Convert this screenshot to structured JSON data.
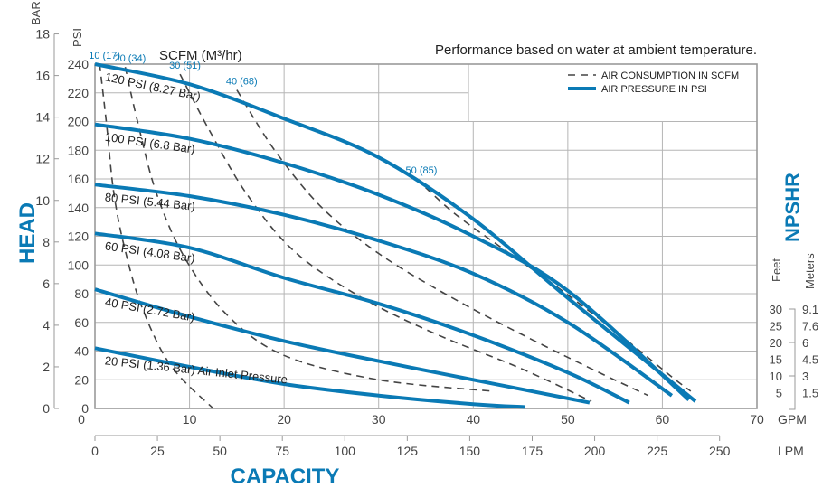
{
  "chart_data": {
    "type": "line",
    "note": "Performance based on water at ambient temperature.",
    "xlabel": "CAPACITY",
    "ylabel": "HEAD",
    "right_label": "NPSHR",
    "x_unit_primary": "GPM",
    "x_unit_secondary": "LPM",
    "y_unit_primary": "PSI",
    "y_unit_secondary": "BAR",
    "xlim": [
      0,
      70
    ],
    "ylim": [
      0,
      240
    ],
    "grid": true,
    "legend_position": "top-right",
    "legend": [
      {
        "label": "AIR CONSUMPTION IN SCFM",
        "style": "dashed",
        "color": "#444444"
      },
      {
        "label": "AIR PRESSURE IN PSI",
        "style": "solid",
        "color": "#0a7ab5"
      }
    ],
    "x_ticks_gpm": [
      "0",
      "10",
      "20",
      "30",
      "40",
      "50",
      "60",
      "70"
    ],
    "x_ticks_lpm": [
      "0",
      "25",
      "50",
      "75",
      "100",
      "125",
      "150",
      "175",
      "200",
      "225",
      "250"
    ],
    "y_ticks_psi": [
      "0",
      "20",
      "40",
      "60",
      "80",
      "100",
      "120",
      "140",
      "160",
      "180",
      "200",
      "220",
      "240"
    ],
    "y_ticks_bar": [
      "0",
      "2",
      "4",
      "6",
      "8",
      "10",
      "12",
      "14",
      "16",
      "18"
    ],
    "npshr_feet_label": "Feet",
    "npshr_meters_label": "Meters",
    "npshr_feet": [
      "30",
      "25",
      "20",
      "15",
      "10",
      "5"
    ],
    "npshr_meters": [
      "9.1",
      "7.6",
      "6",
      "4.5",
      "3",
      "1.5"
    ],
    "scfm_header": "SCFM (M³/hr)",
    "series": [
      {
        "name": "120 PSI (8.27 Bar)",
        "kind": "pressure",
        "x": [
          0,
          10,
          20,
          30,
          40,
          50,
          63.5
        ],
        "y": [
          240,
          226,
          202,
          175,
          132,
          77,
          5
        ]
      },
      {
        "name": "100 PSI (6.8 Bar)",
        "kind": "pressure",
        "x": [
          0,
          10,
          20,
          30,
          40,
          50,
          62.8
        ],
        "y": [
          198,
          188,
          171,
          149,
          120,
          82,
          6
        ]
      },
      {
        "name": "80 PSI (5.44 Bar)",
        "kind": "pressure",
        "x": [
          0,
          10,
          20,
          30,
          40,
          50,
          61
        ],
        "y": [
          156,
          148,
          135,
          117,
          94,
          60,
          9
        ]
      },
      {
        "name": "60 PSI (4.08 Bar)",
        "kind": "pressure",
        "x": [
          0,
          10,
          20,
          30,
          40,
          50,
          56.5
        ],
        "y": [
          122,
          112,
          91,
          73,
          51,
          25,
          4
        ]
      },
      {
        "name": "40 PSI (2.72 Bar)",
        "kind": "pressure",
        "x": [
          0,
          10,
          20,
          30,
          40,
          52.3
        ],
        "y": [
          83,
          64,
          47,
          33,
          20,
          4
        ]
      },
      {
        "name": "20 PSI (1.36 Bar) Air Inlet Pressure",
        "kind": "pressure",
        "x": [
          0,
          10,
          20,
          30,
          40,
          45.5
        ],
        "y": [
          42,
          29,
          17,
          9,
          3,
          1
        ]
      },
      {
        "name": "10 (17)",
        "kind": "scfm",
        "x": [
          0.5,
          1.2,
          2,
          3.2,
          5,
          8,
          12.5
        ],
        "y": [
          240,
          200,
          150,
          110,
          70,
          30,
          0
        ]
      },
      {
        "name": "20 (34)",
        "kind": "scfm",
        "x": [
          3.2,
          4.5,
          6.5,
          9.5,
          14,
          20,
          30,
          42
        ],
        "y": [
          238,
          200,
          150,
          105,
          65,
          37,
          20,
          12
        ]
      },
      {
        "name": "30 (51)",
        "kind": "scfm",
        "x": [
          9,
          12,
          16,
          21,
          28,
          36,
          45,
          52.5
        ],
        "y": [
          233,
          195,
          150,
          110,
          78,
          52,
          28,
          5
        ]
      },
      {
        "name": "40 (68)",
        "kind": "scfm",
        "x": [
          15,
          19,
          24,
          30,
          37,
          45,
          53,
          58.5
        ],
        "y": [
          222,
          180,
          140,
          108,
          80,
          52,
          26,
          9
        ]
      },
      {
        "name": "50 (85)",
        "kind": "scfm",
        "x": [
          34,
          38,
          43,
          49,
          55,
          61,
          63
        ],
        "y": [
          160,
          136,
          112,
          84,
          54,
          22,
          12
        ]
      }
    ]
  }
}
